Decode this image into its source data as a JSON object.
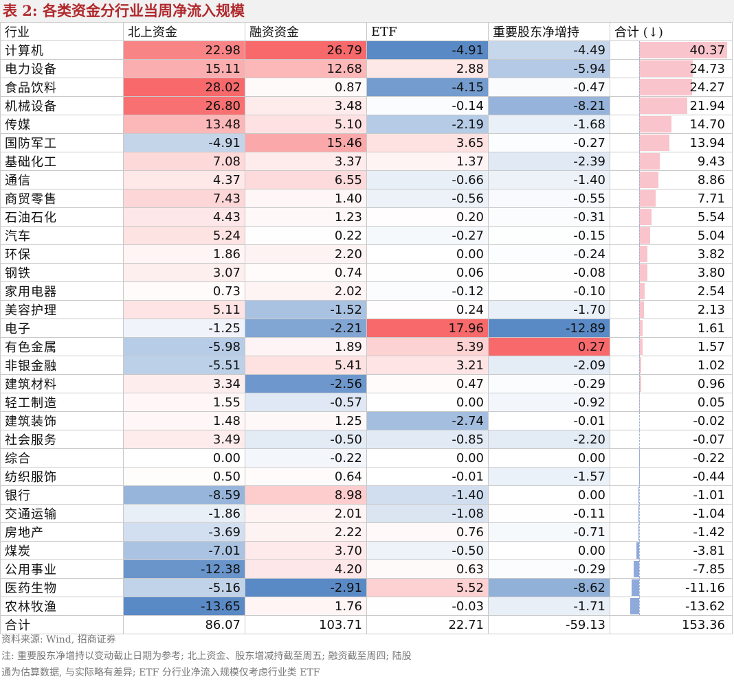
{
  "title": "表 2:  各类资金分行业当周净流入规模",
  "headers": [
    "行业",
    "北上资金",
    "融资资金",
    "ETF",
    "重要股东净增持",
    "合计 (↓)"
  ],
  "colors": {
    "positive": "#f8696b",
    "negative": "#5a8ac6",
    "total_pos_bar": "#f9c4cc",
    "total_neg_bar": "#8eaadb"
  },
  "rows": [
    {
      "name": "计算机",
      "v": [
        22.98,
        26.79,
        -4.91,
        -4.49,
        40.37
      ]
    },
    {
      "name": "电力设备",
      "v": [
        15.11,
        12.68,
        2.88,
        -5.94,
        24.73
      ]
    },
    {
      "name": "食品饮料",
      "v": [
        28.02,
        0.87,
        -4.15,
        -0.47,
        24.27
      ]
    },
    {
      "name": "机械设备",
      "v": [
        26.8,
        3.48,
        -0.14,
        -8.21,
        21.94
      ]
    },
    {
      "name": "传媒",
      "v": [
        13.48,
        5.1,
        -2.19,
        -1.68,
        14.7
      ]
    },
    {
      "name": "国防军工",
      "v": [
        -4.91,
        15.46,
        3.65,
        -0.27,
        13.94
      ]
    },
    {
      "name": "基础化工",
      "v": [
        7.08,
        3.37,
        1.37,
        -2.39,
        9.43
      ]
    },
    {
      "name": "通信",
      "v": [
        4.37,
        6.55,
        -0.66,
        -1.4,
        8.86
      ]
    },
    {
      "name": "商贸零售",
      "v": [
        7.43,
        1.4,
        -0.56,
        -0.55,
        7.71
      ]
    },
    {
      "name": "石油石化",
      "v": [
        4.43,
        1.23,
        0.2,
        -0.31,
        5.54
      ]
    },
    {
      "name": "汽车",
      "v": [
        5.24,
        0.22,
        -0.27,
        -0.15,
        5.04
      ]
    },
    {
      "name": "环保",
      "v": [
        1.86,
        2.2,
        0.0,
        -0.24,
        3.82
      ]
    },
    {
      "name": "钢铁",
      "v": [
        3.07,
        0.74,
        0.06,
        -0.08,
        3.8
      ]
    },
    {
      "name": "家用电器",
      "v": [
        0.73,
        2.02,
        -0.12,
        -0.1,
        2.54
      ]
    },
    {
      "name": "美容护理",
      "v": [
        5.11,
        -1.52,
        0.24,
        -1.7,
        2.13
      ]
    },
    {
      "name": "电子",
      "v": [
        -1.25,
        -2.21,
        17.96,
        -12.89,
        1.61
      ]
    },
    {
      "name": "有色金属",
      "v": [
        -5.98,
        1.89,
        5.39,
        0.27,
        1.57
      ]
    },
    {
      "name": "非银金融",
      "v": [
        -5.51,
        5.41,
        3.21,
        -2.09,
        1.02
      ]
    },
    {
      "name": "建筑材料",
      "v": [
        3.34,
        -2.56,
        0.47,
        -0.29,
        0.96
      ]
    },
    {
      "name": "轻工制造",
      "v": [
        1.55,
        -0.57,
        0.0,
        -0.92,
        0.05
      ]
    },
    {
      "name": "建筑装饰",
      "v": [
        1.48,
        1.25,
        -2.74,
        -0.01,
        -0.02
      ]
    },
    {
      "name": "社会服务",
      "v": [
        3.49,
        -0.5,
        -0.85,
        -2.2,
        -0.07
      ]
    },
    {
      "name": "综合",
      "v": [
        0.0,
        -0.22,
        0.0,
        0.0,
        -0.22
      ]
    },
    {
      "name": "纺织服饰",
      "v": [
        0.5,
        0.64,
        -0.01,
        -1.57,
        -0.44
      ]
    },
    {
      "name": "银行",
      "v": [
        -8.59,
        8.98,
        -1.4,
        0.0,
        -1.01
      ]
    },
    {
      "name": "交通运输",
      "v": [
        -1.86,
        2.01,
        -1.08,
        -0.11,
        -1.04
      ]
    },
    {
      "name": "房地产",
      "v": [
        -3.69,
        2.22,
        0.76,
        -0.71,
        -1.42
      ]
    },
    {
      "name": "煤炭",
      "v": [
        -7.01,
        3.7,
        -0.5,
        0.0,
        -3.81
      ]
    },
    {
      "name": "公用事业",
      "v": [
        -12.38,
        4.2,
        0.63,
        -0.29,
        -7.85
      ]
    },
    {
      "name": "医药生物",
      "v": [
        -5.16,
        -2.91,
        5.52,
        -8.62,
        -11.16
      ]
    },
    {
      "name": "农林牧渔",
      "v": [
        -13.65,
        1.76,
        -0.03,
        -1.71,
        -13.62
      ]
    }
  ],
  "total_row": {
    "name": "合计",
    "v": [
      "86.07",
      "103.71",
      "22.71",
      "-59.13",
      "153.36"
    ]
  },
  "notes": [
    "资料来源: Wind, 招商证券",
    "注: 重要股东净增持以变动截止日期为参考; 北上资金、股东增减持截至周五; 融资截至周四; 陆股",
    "通为估算数据, 与实际略有差异; ETF 分行业净流入规模仅考虑行业类 ETF"
  ]
}
